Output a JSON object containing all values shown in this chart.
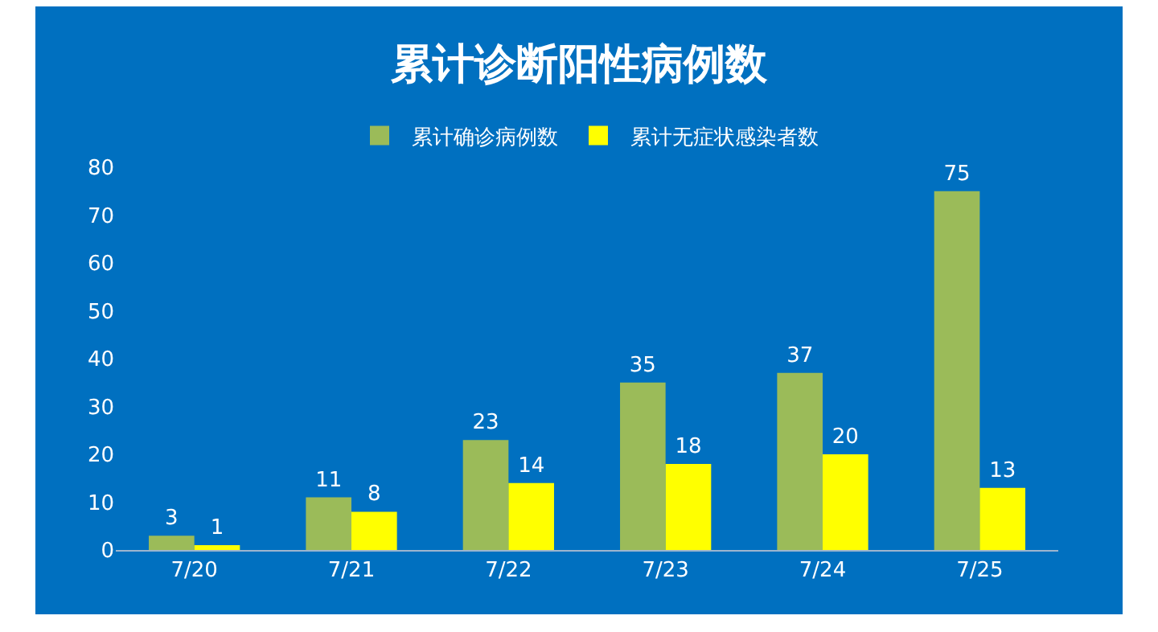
{
  "chart_data": {
    "type": "bar",
    "title": "累计诊断阳性病例数",
    "categories": [
      "7/20",
      "7/21",
      "7/22",
      "7/23",
      "7/24",
      "7/25"
    ],
    "series": [
      {
        "name": "累计确诊病例数",
        "color": "#9bbb59",
        "values": [
          3,
          11,
          23,
          35,
          37,
          75
        ]
      },
      {
        "name": "累计无症状感染者数",
        "color": "#ffff00",
        "values": [
          1,
          8,
          14,
          18,
          20,
          13
        ]
      }
    ],
    "ylim": [
      0,
      80
    ],
    "yticks": [
      0,
      10,
      20,
      30,
      40,
      50,
      60,
      70,
      80
    ],
    "grid": false,
    "legend": "top",
    "data_labels": true
  }
}
